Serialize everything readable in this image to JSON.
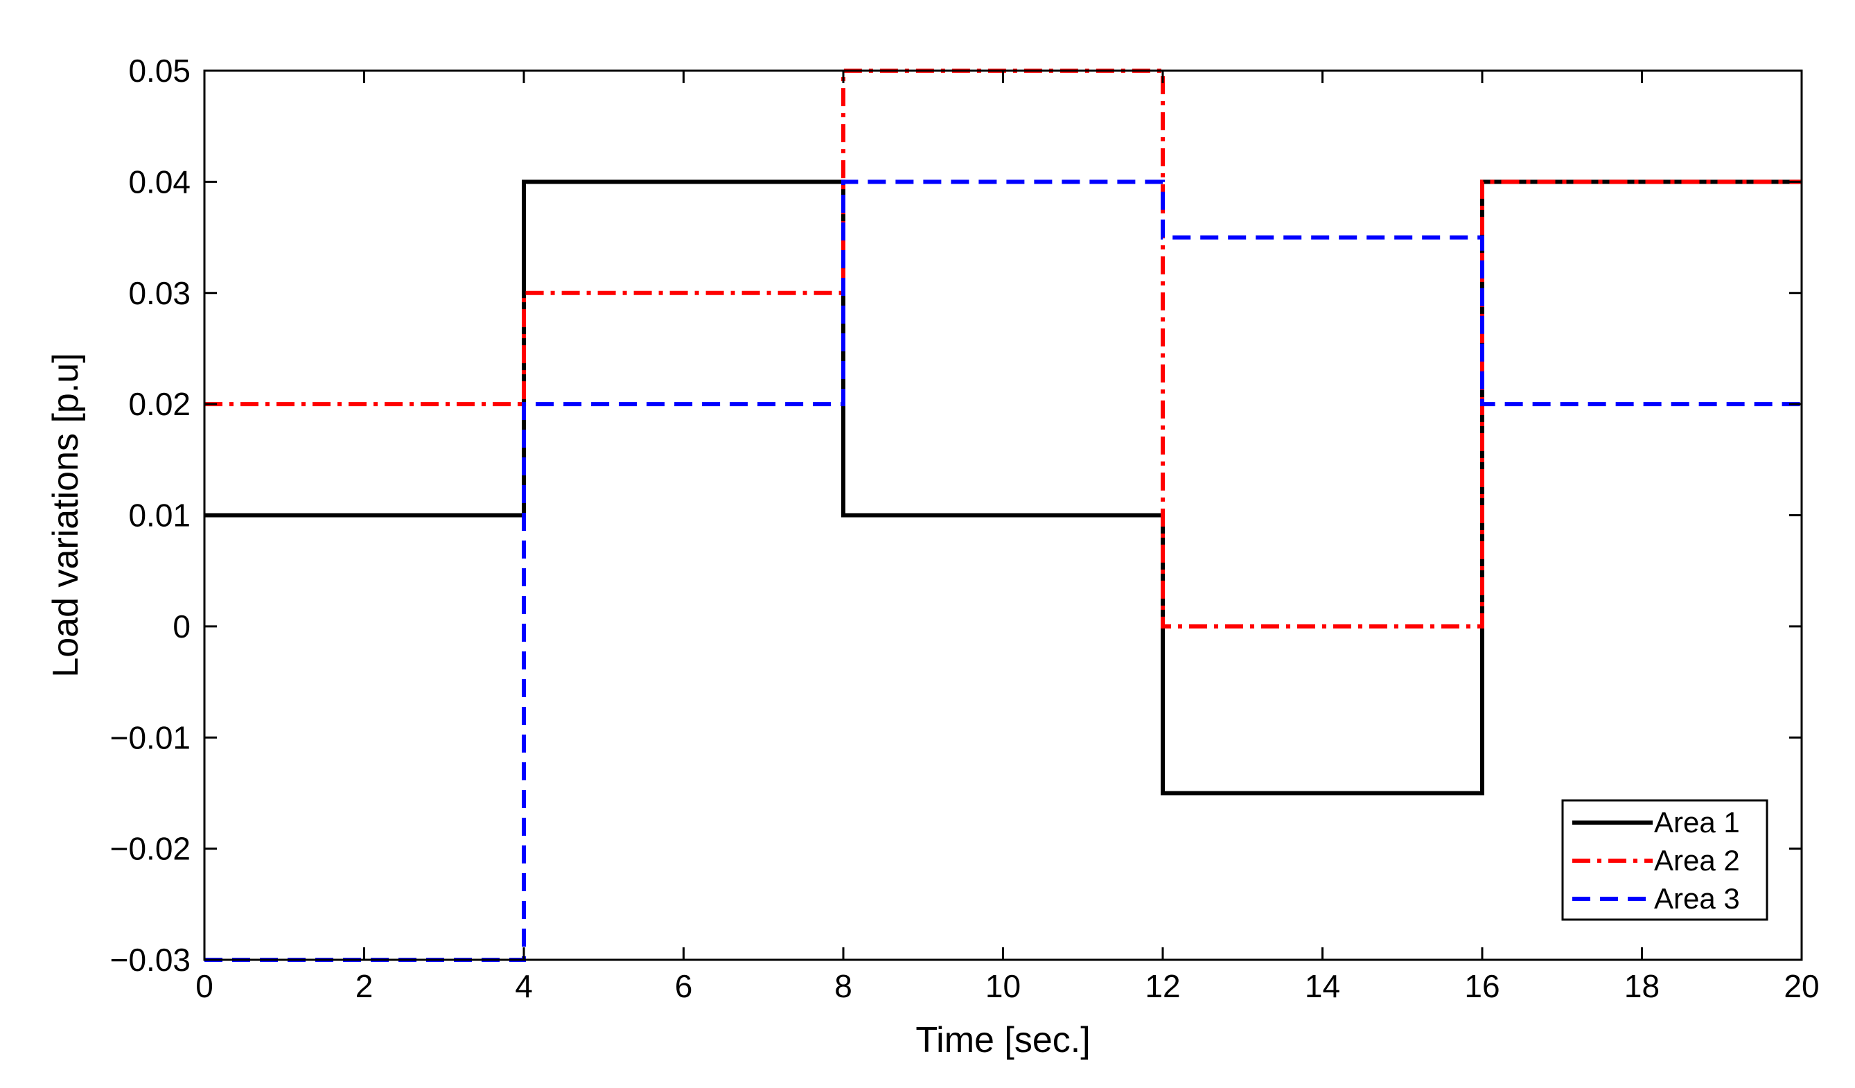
{
  "chart_data": {
    "type": "line",
    "step": true,
    "xlabel": "Time [sec.]",
    "ylabel": "Load variations [p.u]",
    "xlim": [
      0,
      20
    ],
    "ylim": [
      -0.03,
      0.05
    ],
    "xticks": [
      0,
      2,
      4,
      6,
      8,
      10,
      12,
      14,
      16,
      18,
      20
    ],
    "xtick_labels": [
      "0",
      "2",
      "4",
      "6",
      "8",
      "10",
      "12",
      "14",
      "16",
      "18",
      "20"
    ],
    "yticks": [
      -0.03,
      -0.02,
      -0.01,
      0,
      0.01,
      0.02,
      0.03,
      0.04,
      0.05
    ],
    "ytick_labels": [
      "−0.03",
      "−0.02",
      "−0.01",
      "0",
      "0.01",
      "0.02",
      "0.03",
      "0.04",
      "0.05"
    ],
    "grid": false,
    "legend_position": "bottom-right",
    "x": [
      0,
      4,
      8,
      12,
      16,
      20
    ],
    "series": [
      {
        "name": "Area 1",
        "color": "#000000",
        "linestyle": "solid",
        "values": [
          0.01,
          0.04,
          0.01,
          -0.015,
          0.04,
          0.04
        ]
      },
      {
        "name": "Area 2",
        "color": "#ff0000",
        "linestyle": "dashdot",
        "values": [
          0.02,
          0.03,
          0.05,
          0,
          0.04,
          0.04
        ]
      },
      {
        "name": "Area 3",
        "color": "#0000ff",
        "linestyle": "dashed",
        "values": [
          -0.03,
          0.02,
          0.04,
          0.035,
          0.02,
          0.02
        ]
      }
    ]
  }
}
